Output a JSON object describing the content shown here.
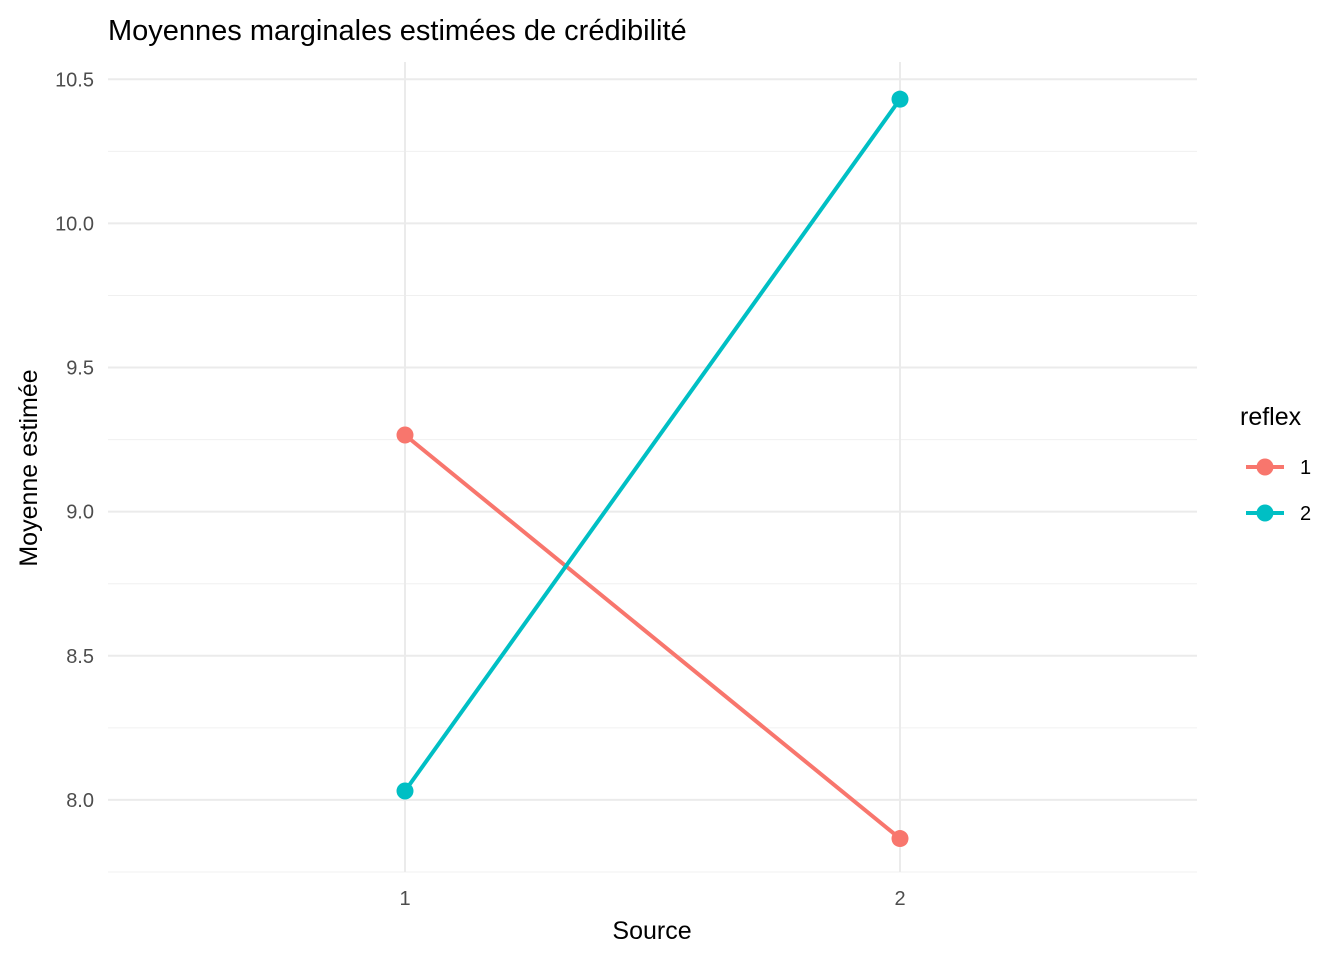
{
  "chart_data": {
    "type": "line",
    "title": "Moyennes marginales estimées de crédibilité",
    "xlabel": "Source",
    "ylabel": "Moyenne estimée",
    "categories": [
      "1",
      "2"
    ],
    "yticks": [
      "8.0",
      "8.5",
      "9.0",
      "9.5",
      "10.0",
      "10.5"
    ],
    "ylim": [
      7.75,
      10.56
    ],
    "grid": true,
    "legend": {
      "title": "reflex",
      "position": "right"
    },
    "series": [
      {
        "name": "1",
        "color": "#F8766D",
        "values": [
          9.266,
          7.866
        ]
      },
      {
        "name": "2",
        "color": "#00BFC4",
        "values": [
          8.031,
          10.431
        ]
      }
    ]
  }
}
